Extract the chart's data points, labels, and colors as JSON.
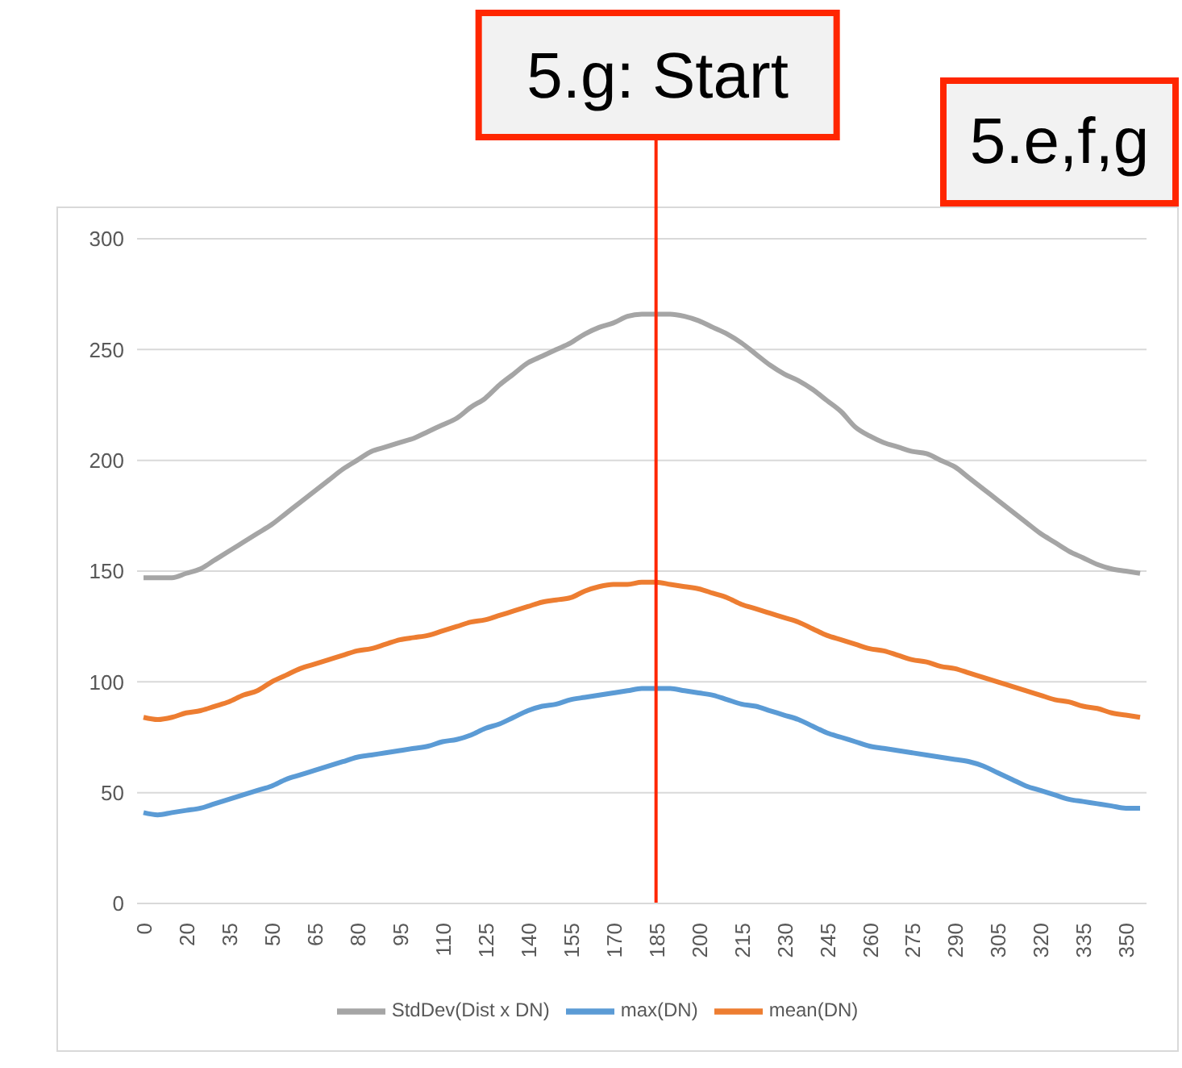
{
  "chart_data": {
    "type": "line",
    "categories": [
      "0",
      null,
      null,
      "20",
      null,
      null,
      "35",
      null,
      null,
      "50",
      null,
      null,
      "65",
      null,
      null,
      "80",
      null,
      null,
      "95",
      null,
      null,
      "110",
      null,
      null,
      "125",
      null,
      null,
      "140",
      null,
      null,
      "155",
      null,
      null,
      "170",
      null,
      null,
      "185",
      null,
      null,
      "200",
      null,
      null,
      "215",
      null,
      null,
      "230",
      null,
      null,
      "245",
      null,
      null,
      "260",
      null,
      null,
      "275",
      null,
      null,
      "290",
      null,
      null,
      "305",
      null,
      null,
      "320",
      null,
      null,
      "335",
      null,
      null,
      "350",
      null
    ],
    "series": [
      {
        "name": "max(DN)",
        "color": "#5b9bd5",
        "values": [
          41,
          40,
          41,
          42,
          43,
          45,
          47,
          49,
          51,
          53,
          56,
          58,
          60,
          62,
          64,
          66,
          67,
          68,
          69,
          70,
          71,
          73,
          74,
          76,
          79,
          81,
          84,
          87,
          89,
          90,
          92,
          93,
          94,
          95,
          96,
          97,
          97,
          97,
          96,
          95,
          94,
          92,
          90,
          89,
          87,
          85,
          83,
          80,
          77,
          75,
          73,
          71,
          70,
          69,
          68,
          67,
          66,
          65,
          64,
          62,
          59,
          56,
          53,
          51,
          49,
          47,
          46,
          45,
          44,
          43,
          43
        ]
      },
      {
        "name": "mean(DN)",
        "color": "#ed7d31",
        "values": [
          84,
          83,
          84,
          86,
          87,
          89,
          91,
          94,
          96,
          100,
          103,
          106,
          108,
          110,
          112,
          114,
          115,
          117,
          119,
          120,
          121,
          123,
          125,
          127,
          128,
          130,
          132,
          134,
          136,
          137,
          138,
          141,
          143,
          144,
          144,
          145,
          145,
          144,
          143,
          142,
          140,
          138,
          135,
          133,
          131,
          129,
          127,
          124,
          121,
          119,
          117,
          115,
          114,
          112,
          110,
          109,
          107,
          106,
          104,
          102,
          100,
          98,
          96,
          94,
          92,
          91,
          89,
          88,
          86,
          85,
          84
        ]
      },
      {
        "name": "StdDev(Dist x DN)",
        "color": "#a5a5a5",
        "values": [
          147,
          147,
          147,
          149,
          151,
          155,
          159,
          163,
          167,
          171,
          176,
          181,
          186,
          191,
          196,
          200,
          204,
          206,
          208,
          210,
          213,
          216,
          219,
          224,
          228,
          234,
          239,
          244,
          247,
          250,
          253,
          257,
          260,
          262,
          265,
          266,
          266,
          266,
          265,
          263,
          260,
          257,
          253,
          248,
          243,
          239,
          236,
          232,
          227,
          222,
          215,
          211,
          208,
          206,
          204,
          203,
          200,
          197,
          192,
          187,
          182,
          177,
          172,
          167,
          163,
          159,
          156,
          153,
          151,
          150,
          149
        ]
      }
    ],
    "ylim": [
      0,
      300
    ],
    "yticks": [
      0,
      50,
      100,
      150,
      200,
      250,
      300
    ],
    "grid": "y",
    "legend": "bottom",
    "marker": "none",
    "ref_lines": [
      {
        "axis": "x",
        "value": "185",
        "label": "5.g: Start",
        "color": "#ff2600"
      }
    ],
    "annotations": [
      "5.e,f,g"
    ]
  }
}
